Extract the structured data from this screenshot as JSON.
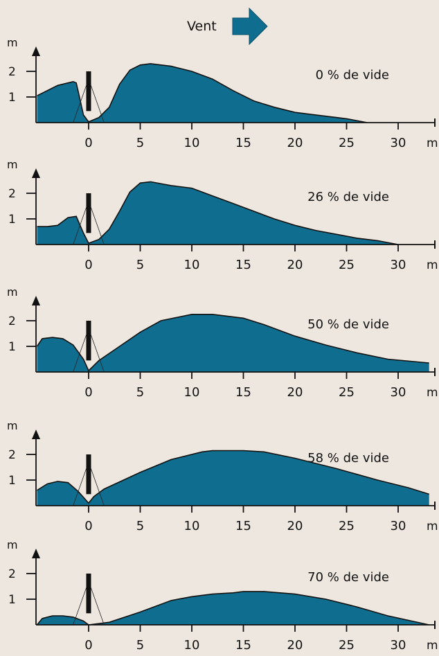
{
  "header": {
    "wind_label": "Vent",
    "wind_icon": "arrow-right-icon",
    "arrow_color": "#0f6d8f"
  },
  "colors": {
    "background": "#ede7df",
    "fill": "#0f6d8f",
    "outline": "#111111",
    "fence": "#111111"
  },
  "chart_data": [
    {
      "type": "area",
      "annotation": "0 % de vide",
      "ylabel": "m",
      "xlabel": "m",
      "xlim": [
        -5,
        33
      ],
      "ylim": [
        0,
        2.8
      ],
      "x_ticks": [
        0,
        5,
        10,
        15,
        20,
        25,
        30
      ],
      "y_ticks": [
        1,
        2
      ],
      "fence_height": 2.0,
      "profile": [
        [
          -5,
          1.05
        ],
        [
          -3,
          1.45
        ],
        [
          -1.5,
          1.6
        ],
        [
          -1.2,
          1.55
        ],
        [
          -1,
          1.2
        ],
        [
          -0.5,
          0.3
        ],
        [
          0,
          0.03
        ],
        [
          1,
          0.2
        ],
        [
          2,
          0.6
        ],
        [
          3,
          1.5
        ],
        [
          4,
          2.05
        ],
        [
          5,
          2.25
        ],
        [
          6,
          2.3
        ],
        [
          8,
          2.2
        ],
        [
          10,
          2.0
        ],
        [
          12,
          1.7
        ],
        [
          14,
          1.25
        ],
        [
          16,
          0.85
        ],
        [
          18,
          0.6
        ],
        [
          20,
          0.4
        ],
        [
          22,
          0.3
        ],
        [
          24,
          0.2
        ],
        [
          25,
          0.15
        ],
        [
          27,
          0.0
        ]
      ]
    },
    {
      "type": "area",
      "annotation": "26 % de vide",
      "ylabel": "m",
      "xlabel": "m",
      "xlim": [
        -5,
        33
      ],
      "ylim": [
        0,
        2.8
      ],
      "x_ticks": [
        0,
        5,
        10,
        15,
        20,
        25,
        30
      ],
      "y_ticks": [
        1,
        2
      ],
      "fence_height": 2.0,
      "profile": [
        [
          -5,
          0.7
        ],
        [
          -4,
          0.7
        ],
        [
          -3,
          0.75
        ],
        [
          -2,
          1.05
        ],
        [
          -1.2,
          1.1
        ],
        [
          -0.5,
          0.45
        ],
        [
          0,
          0.05
        ],
        [
          1,
          0.2
        ],
        [
          2,
          0.6
        ],
        [
          3,
          1.3
        ],
        [
          4,
          2.05
        ],
        [
          5,
          2.4
        ],
        [
          6,
          2.45
        ],
        [
          8,
          2.3
        ],
        [
          10,
          2.2
        ],
        [
          12,
          1.9
        ],
        [
          14,
          1.6
        ],
        [
          16,
          1.3
        ],
        [
          18,
          1.0
        ],
        [
          20,
          0.75
        ],
        [
          22,
          0.55
        ],
        [
          24,
          0.4
        ],
        [
          26,
          0.25
        ],
        [
          28,
          0.15
        ],
        [
          30,
          0.0
        ]
      ]
    },
    {
      "type": "area",
      "annotation": "50 % de vide",
      "ylabel": "m",
      "xlabel": "m",
      "xlim": [
        -5,
        33
      ],
      "ylim": [
        0,
        2.8
      ],
      "x_ticks": [
        0,
        5,
        10,
        15,
        20,
        25,
        30
      ],
      "y_ticks": [
        1,
        2
      ],
      "fence_height": 2.0,
      "profile": [
        [
          -5,
          1.0
        ],
        [
          -4.5,
          1.3
        ],
        [
          -3.5,
          1.35
        ],
        [
          -2.5,
          1.3
        ],
        [
          -1.5,
          1.05
        ],
        [
          -0.5,
          0.5
        ],
        [
          0,
          0.05
        ],
        [
          1,
          0.45
        ],
        [
          3,
          1.0
        ],
        [
          5,
          1.55
        ],
        [
          7,
          2.0
        ],
        [
          10,
          2.25
        ],
        [
          12,
          2.25
        ],
        [
          15,
          2.1
        ],
        [
          17,
          1.85
        ],
        [
          20,
          1.4
        ],
        [
          23,
          1.05
        ],
        [
          26,
          0.75
        ],
        [
          29,
          0.5
        ],
        [
          33,
          0.35
        ]
      ]
    },
    {
      "type": "area",
      "annotation": "58 % de vide",
      "ylabel": "m",
      "xlabel": "m",
      "xlim": [
        -5,
        33
      ],
      "ylim": [
        0,
        2.8
      ],
      "x_ticks": [
        0,
        5,
        10,
        15,
        20,
        25,
        30
      ],
      "y_ticks": [
        1,
        2
      ],
      "fence_height": 2.0,
      "profile": [
        [
          -5,
          0.6
        ],
        [
          -4,
          0.85
        ],
        [
          -3,
          0.95
        ],
        [
          -2,
          0.9
        ],
        [
          -1,
          0.55
        ],
        [
          0,
          0.1
        ],
        [
          0.5,
          0.35
        ],
        [
          1.5,
          0.65
        ],
        [
          5,
          1.3
        ],
        [
          8,
          1.8
        ],
        [
          11,
          2.1
        ],
        [
          12,
          2.15
        ],
        [
          15,
          2.15
        ],
        [
          17,
          2.1
        ],
        [
          20,
          1.85
        ],
        [
          24,
          1.45
        ],
        [
          28,
          1.0
        ],
        [
          31,
          0.7
        ],
        [
          33,
          0.45
        ]
      ]
    },
    {
      "type": "area",
      "annotation": "70 % de vide",
      "ylabel": "m",
      "xlabel": "m",
      "xlim": [
        -5,
        33
      ],
      "ylim": [
        0,
        2.8
      ],
      "x_ticks": [
        0,
        5,
        10,
        15,
        20,
        25,
        30
      ],
      "y_ticks": [
        1,
        2
      ],
      "fence_height": 2.0,
      "profile": [
        [
          -5,
          0.0
        ],
        [
          -4.5,
          0.25
        ],
        [
          -3.5,
          0.35
        ],
        [
          -2.5,
          0.35
        ],
        [
          -1.5,
          0.3
        ],
        [
          -0.5,
          0.15
        ],
        [
          0,
          0.0
        ],
        [
          2,
          0.1
        ],
        [
          5,
          0.5
        ],
        [
          8,
          0.95
        ],
        [
          10,
          1.1
        ],
        [
          12,
          1.2
        ],
        [
          14,
          1.25
        ],
        [
          15,
          1.3
        ],
        [
          17,
          1.3
        ],
        [
          20,
          1.2
        ],
        [
          23,
          1.0
        ],
        [
          26,
          0.7
        ],
        [
          29,
          0.35
        ],
        [
          33,
          0.0
        ]
      ]
    }
  ]
}
